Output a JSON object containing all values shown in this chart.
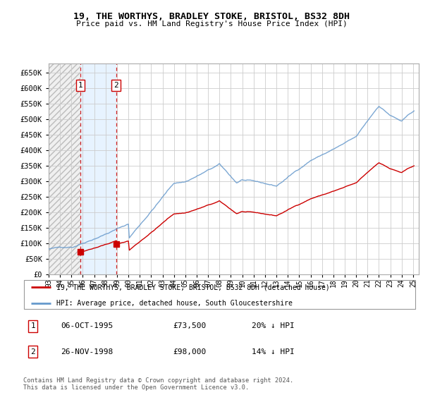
{
  "title1": "19, THE WORTHYS, BRADLEY STOKE, BRISTOL, BS32 8DH",
  "title2": "Price paid vs. HM Land Registry's House Price Index (HPI)",
  "legend_line1": "19, THE WORTHYS, BRADLEY STOKE, BRISTOL, BS32 8DH (detached house)",
  "legend_line2": "HPI: Average price, detached house, South Gloucestershire",
  "transaction1_date": "06-OCT-1995",
  "transaction1_price": "£73,500",
  "transaction1_hpi": "20% ↓ HPI",
  "transaction2_date": "26-NOV-1998",
  "transaction2_price": "£98,000",
  "transaction2_hpi": "14% ↓ HPI",
  "copyright": "Contains HM Land Registry data © Crown copyright and database right 2024.\nThis data is licensed under the Open Government Licence v3.0.",
  "ylim": [
    0,
    680000
  ],
  "yticks": [
    0,
    50000,
    100000,
    150000,
    200000,
    250000,
    300000,
    350000,
    400000,
    450000,
    500000,
    550000,
    600000,
    650000
  ],
  "hpi_color": "#6699cc",
  "price_color": "#cc0000",
  "shade_color": "#ddeeff",
  "grid_color": "#cccccc",
  "t1_year": 1995.79,
  "t2_year": 1998.92,
  "t1_price": 73500,
  "t2_price": 98000
}
